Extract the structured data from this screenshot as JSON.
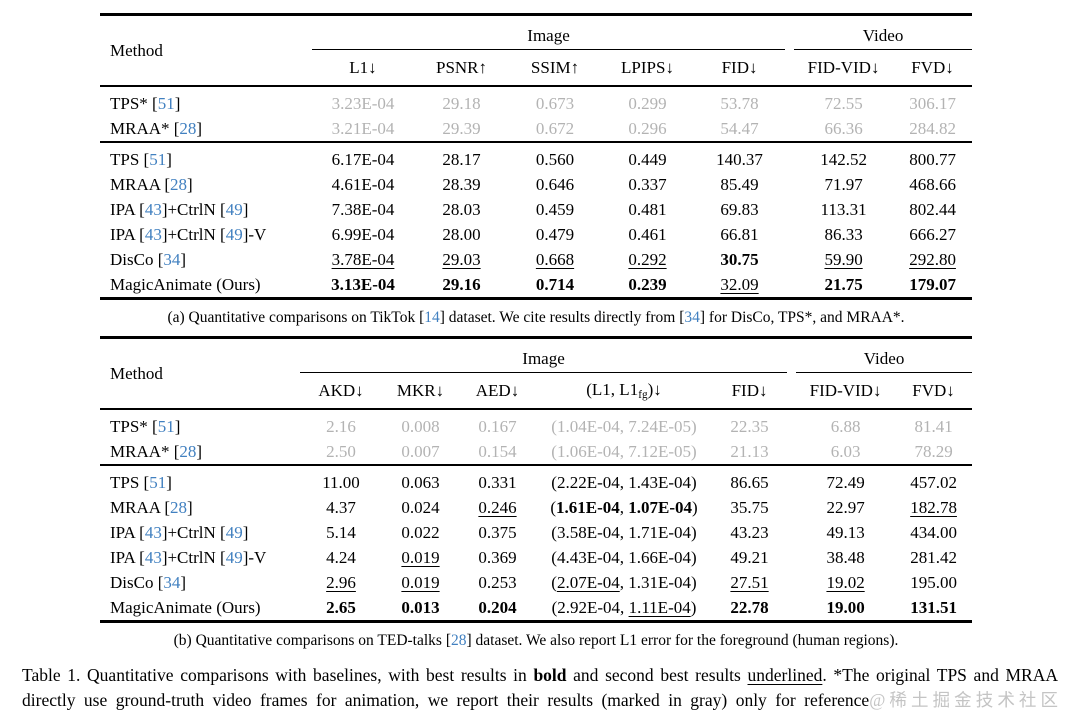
{
  "colors": {
    "citation_blue": "#4180c0",
    "reference_gray_text": "#b3b3b3",
    "watermark_gray": "#c4c4c4",
    "rule_black": "#000000"
  },
  "table_a": {
    "method_header": "Method",
    "groups": {
      "image": "Image",
      "video": "Video"
    },
    "spacer_after": 5,
    "columns": [
      [
        {
          "t": "L1↓"
        }
      ],
      [
        {
          "t": "PSNR↑"
        }
      ],
      [
        {
          "t": "SSIM↑"
        }
      ],
      [
        {
          "t": "LPIPS↓"
        }
      ],
      [
        {
          "t": "FID↓"
        }
      ],
      [
        {
          "t": "FID-VID↓"
        }
      ],
      [
        {
          "t": "FVD↓"
        }
      ]
    ],
    "gray_rows": [
      {
        "method": [
          {
            "t": "TPS* ["
          },
          {
            "t": "51",
            "s": "cite"
          },
          {
            "t": "]"
          }
        ],
        "cells": [
          [
            {
              "t": "3.23E-04"
            }
          ],
          [
            {
              "t": "29.18"
            }
          ],
          [
            {
              "t": "0.673"
            }
          ],
          [
            {
              "t": "0.299"
            }
          ],
          [
            {
              "t": "53.78"
            }
          ],
          [
            {
              "t": "72.55"
            }
          ],
          [
            {
              "t": "306.17"
            }
          ]
        ]
      },
      {
        "method": [
          {
            "t": "MRAA* ["
          },
          {
            "t": "28",
            "s": "cite"
          },
          {
            "t": "]"
          }
        ],
        "cells": [
          [
            {
              "t": "3.21E-04"
            }
          ],
          [
            {
              "t": "29.39"
            }
          ],
          [
            {
              "t": "0.672"
            }
          ],
          [
            {
              "t": "0.296"
            }
          ],
          [
            {
              "t": "54.47"
            }
          ],
          [
            {
              "t": "66.36"
            }
          ],
          [
            {
              "t": "284.82"
            }
          ]
        ]
      }
    ],
    "rows": [
      {
        "method": [
          {
            "t": "TPS ["
          },
          {
            "t": "51",
            "s": "cite"
          },
          {
            "t": "]"
          }
        ],
        "cells": [
          [
            {
              "t": "6.17E-04"
            }
          ],
          [
            {
              "t": "28.17"
            }
          ],
          [
            {
              "t": "0.560"
            }
          ],
          [
            {
              "t": "0.449"
            }
          ],
          [
            {
              "t": "140.37"
            }
          ],
          [
            {
              "t": "142.52"
            }
          ],
          [
            {
              "t": "800.77"
            }
          ]
        ]
      },
      {
        "method": [
          {
            "t": "MRAA ["
          },
          {
            "t": "28",
            "s": "cite"
          },
          {
            "t": "]"
          }
        ],
        "cells": [
          [
            {
              "t": "4.61E-04"
            }
          ],
          [
            {
              "t": "28.39"
            }
          ],
          [
            {
              "t": "0.646"
            }
          ],
          [
            {
              "t": "0.337"
            }
          ],
          [
            {
              "t": "85.49"
            }
          ],
          [
            {
              "t": "71.97"
            }
          ],
          [
            {
              "t": "468.66"
            }
          ]
        ]
      },
      {
        "method": [
          {
            "t": "IPA ["
          },
          {
            "t": "43",
            "s": "cite"
          },
          {
            "t": "]+CtrlN ["
          },
          {
            "t": "49",
            "s": "cite"
          },
          {
            "t": "]"
          }
        ],
        "cells": [
          [
            {
              "t": "7.38E-04"
            }
          ],
          [
            {
              "t": "28.03"
            }
          ],
          [
            {
              "t": "0.459"
            }
          ],
          [
            {
              "t": "0.481"
            }
          ],
          [
            {
              "t": "69.83"
            }
          ],
          [
            {
              "t": "113.31"
            }
          ],
          [
            {
              "t": "802.44"
            }
          ]
        ]
      },
      {
        "method": [
          {
            "t": "IPA ["
          },
          {
            "t": "43",
            "s": "cite"
          },
          {
            "t": "]+CtrlN ["
          },
          {
            "t": "49",
            "s": "cite"
          },
          {
            "t": "]-V"
          }
        ],
        "cells": [
          [
            {
              "t": "6.99E-04"
            }
          ],
          [
            {
              "t": "28.00"
            }
          ],
          [
            {
              "t": "0.479"
            }
          ],
          [
            {
              "t": "0.461"
            }
          ],
          [
            {
              "t": "66.81"
            }
          ],
          [
            {
              "t": "86.33"
            }
          ],
          [
            {
              "t": "666.27"
            }
          ]
        ]
      },
      {
        "method": [
          {
            "t": "DisCo ["
          },
          {
            "t": "34",
            "s": "cite"
          },
          {
            "t": "]"
          }
        ],
        "cells": [
          [
            {
              "t": "3.78E-04",
              "s": "ul"
            }
          ],
          [
            {
              "t": "29.03",
              "s": "ul"
            }
          ],
          [
            {
              "t": "0.668",
              "s": "ul"
            }
          ],
          [
            {
              "t": "0.292",
              "s": "ul"
            }
          ],
          [
            {
              "t": "30.75",
              "s": "bold"
            }
          ],
          [
            {
              "t": "59.90",
              "s": "ul"
            }
          ],
          [
            {
              "t": "292.80",
              "s": "ul"
            }
          ]
        ]
      },
      {
        "method": [
          {
            "t": "MagicAnimate (Ours)"
          }
        ],
        "cells": [
          [
            {
              "t": "3.13E-04",
              "s": "bold"
            }
          ],
          [
            {
              "t": "29.16",
              "s": "bold"
            }
          ],
          [
            {
              "t": "0.714",
              "s": "bold"
            }
          ],
          [
            {
              "t": "0.239",
              "s": "bold"
            }
          ],
          [
            {
              "t": "32.09",
              "s": "ul"
            }
          ],
          [
            {
              "t": "21.75",
              "s": "bold"
            }
          ],
          [
            {
              "t": "179.07",
              "s": "bold"
            }
          ]
        ]
      }
    ],
    "caption": [
      {
        "t": "(a) Quantitative comparisons on TikTok ["
      },
      {
        "t": "14",
        "s": "cite"
      },
      {
        "t": "] dataset. We cite results directly from ["
      },
      {
        "t": "34",
        "s": "cite"
      },
      {
        "t": "] for DisCo, TPS*, and MRAA*."
      }
    ]
  },
  "table_b": {
    "method_header": "Method",
    "groups": {
      "image": "Image",
      "video": "Video"
    },
    "spacer_after": 5,
    "columns": [
      [
        {
          "t": "AKD↓"
        }
      ],
      [
        {
          "t": "MKR↓"
        }
      ],
      [
        {
          "t": "AED↓"
        }
      ],
      [
        {
          "t": "(L1, L1"
        },
        {
          "t": "fg",
          "s": "sub"
        },
        {
          "t": ")↓"
        }
      ],
      [
        {
          "t": "FID↓"
        }
      ],
      [
        {
          "t": "FID-VID↓"
        }
      ],
      [
        {
          "t": "FVD↓"
        }
      ]
    ],
    "gray_rows": [
      {
        "method": [
          {
            "t": "TPS* ["
          },
          {
            "t": "51",
            "s": "cite"
          },
          {
            "t": "]"
          }
        ],
        "cells": [
          [
            {
              "t": "2.16"
            }
          ],
          [
            {
              "t": "0.008"
            }
          ],
          [
            {
              "t": "0.167"
            }
          ],
          [
            {
              "t": "(1.04E-04, 7.24E-05)"
            }
          ],
          [
            {
              "t": "22.35"
            }
          ],
          [
            {
              "t": "6.88"
            }
          ],
          [
            {
              "t": "81.41"
            }
          ]
        ]
      },
      {
        "method": [
          {
            "t": "MRAA* ["
          },
          {
            "t": "28",
            "s": "cite"
          },
          {
            "t": "]"
          }
        ],
        "cells": [
          [
            {
              "t": "2.50"
            }
          ],
          [
            {
              "t": "0.007"
            }
          ],
          [
            {
              "t": "0.154"
            }
          ],
          [
            {
              "t": "(1.06E-04, 7.12E-05)"
            }
          ],
          [
            {
              "t": "21.13"
            }
          ],
          [
            {
              "t": "6.03"
            }
          ],
          [
            {
              "t": "78.29"
            }
          ]
        ]
      }
    ],
    "rows": [
      {
        "method": [
          {
            "t": "TPS ["
          },
          {
            "t": "51",
            "s": "cite"
          },
          {
            "t": "]"
          }
        ],
        "cells": [
          [
            {
              "t": "11.00"
            }
          ],
          [
            {
              "t": "0.063"
            }
          ],
          [
            {
              "t": "0.331"
            }
          ],
          [
            {
              "t": "(2.22E-04, 1.43E-04)"
            }
          ],
          [
            {
              "t": "86.65"
            }
          ],
          [
            {
              "t": "72.49"
            }
          ],
          [
            {
              "t": "457.02"
            }
          ]
        ]
      },
      {
        "method": [
          {
            "t": "MRAA ["
          },
          {
            "t": "28",
            "s": "cite"
          },
          {
            "t": "]"
          }
        ],
        "cells": [
          [
            {
              "t": "4.37"
            }
          ],
          [
            {
              "t": "0.024"
            }
          ],
          [
            {
              "t": "0.246",
              "s": "ul"
            }
          ],
          [
            {
              "t": "("
            },
            {
              "t": "1.61E-04",
              "s": "bold"
            },
            {
              "t": ", "
            },
            {
              "t": "1.07E-04",
              "s": "bold"
            },
            {
              "t": ")"
            }
          ],
          [
            {
              "t": "35.75"
            }
          ],
          [
            {
              "t": "22.97"
            }
          ],
          [
            {
              "t": "182.78",
              "s": "ul"
            }
          ]
        ]
      },
      {
        "method": [
          {
            "t": "IPA ["
          },
          {
            "t": "43",
            "s": "cite"
          },
          {
            "t": "]+CtrlN ["
          },
          {
            "t": "49",
            "s": "cite"
          },
          {
            "t": "]"
          }
        ],
        "cells": [
          [
            {
              "t": "5.14"
            }
          ],
          [
            {
              "t": "0.022"
            }
          ],
          [
            {
              "t": "0.375"
            }
          ],
          [
            {
              "t": "(3.58E-04, 1.71E-04)"
            }
          ],
          [
            {
              "t": "43.23"
            }
          ],
          [
            {
              "t": "49.13"
            }
          ],
          [
            {
              "t": "434.00"
            }
          ]
        ]
      },
      {
        "method": [
          {
            "t": "IPA ["
          },
          {
            "t": "43",
            "s": "cite"
          },
          {
            "t": "]+CtrlN ["
          },
          {
            "t": "49",
            "s": "cite"
          },
          {
            "t": "]-V"
          }
        ],
        "cells": [
          [
            {
              "t": "4.24"
            }
          ],
          [
            {
              "t": "0.019",
              "s": "ul"
            }
          ],
          [
            {
              "t": "0.369"
            }
          ],
          [
            {
              "t": "(4.43E-04, 1.66E-04)"
            }
          ],
          [
            {
              "t": "49.21"
            }
          ],
          [
            {
              "t": "38.48"
            }
          ],
          [
            {
              "t": "281.42"
            }
          ]
        ]
      },
      {
        "method": [
          {
            "t": "DisCo ["
          },
          {
            "t": "34",
            "s": "cite"
          },
          {
            "t": "]"
          }
        ],
        "cells": [
          [
            {
              "t": "2.96",
              "s": "ul"
            }
          ],
          [
            {
              "t": "0.019",
              "s": "ul"
            }
          ],
          [
            {
              "t": "0.253"
            }
          ],
          [
            {
              "t": "("
            },
            {
              "t": "2.07E-04",
              "s": "ul"
            },
            {
              "t": ", 1.31E-04)"
            }
          ],
          [
            {
              "t": "27.51",
              "s": "ul"
            }
          ],
          [
            {
              "t": "19.02",
              "s": "ul"
            }
          ],
          [
            {
              "t": "195.00"
            }
          ]
        ]
      },
      {
        "method": [
          {
            "t": "MagicAnimate (Ours)"
          }
        ],
        "cells": [
          [
            {
              "t": "2.65",
              "s": "bold"
            }
          ],
          [
            {
              "t": "0.013",
              "s": "bold"
            }
          ],
          [
            {
              "t": "0.204",
              "s": "bold"
            }
          ],
          [
            {
              "t": "(2.92E-04, "
            },
            {
              "t": "1.11E-04",
              "s": "ul"
            },
            {
              "t": ")"
            }
          ],
          [
            {
              "t": "22.78",
              "s": "bold"
            }
          ],
          [
            {
              "t": "19.00",
              "s": "bold"
            }
          ],
          [
            {
              "t": "131.51",
              "s": "bold"
            }
          ]
        ]
      }
    ],
    "caption": [
      {
        "t": "(b) Quantitative comparisons on TED-talks ["
      },
      {
        "t": "28",
        "s": "cite"
      },
      {
        "t": "] dataset. We also report L1 error for the foreground (human regions)."
      }
    ]
  },
  "main_caption": [
    {
      "t": "Table 1.  Quantitative comparisons with baselines, with best results in "
    },
    {
      "t": "bold",
      "s": "bold"
    },
    {
      "t": " and second best results "
    },
    {
      "t": "underlined",
      "s": "ul"
    },
    {
      "t": ".  *The original TPS and MRAA directly use ground-truth video frames for animation, we report their results (marked in gray) only for reference"
    },
    {
      "t": "@稀土掘金技术社区",
      "s": "wm"
    }
  ]
}
